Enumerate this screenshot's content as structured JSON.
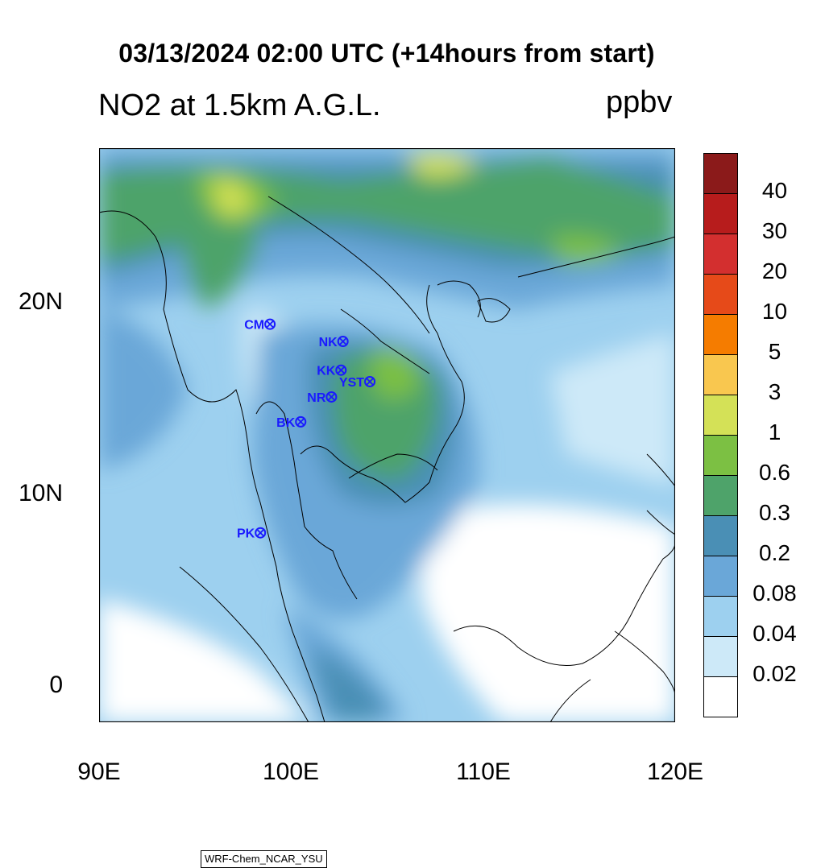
{
  "title": "03/13/2024 02:00 UTC (+14hours from start)",
  "subtitle": "NO2 at 1.5km A.G.L.",
  "units": "ppbv",
  "credit": "WRF-Chem_NCAR_YSU",
  "x_ticks": [
    "90E",
    "100E",
    "110E",
    "120E"
  ],
  "y_ticks": [
    "20N",
    "10N",
    "0"
  ],
  "colorbar": {
    "labels": [
      "40",
      "30",
      "20",
      "10",
      "5",
      "3",
      "1",
      "0.6",
      "0.3",
      "0.2",
      "0.08",
      "0.04",
      "0.02"
    ],
    "colors": [
      "#8b1a1a",
      "#b71c1c",
      "#d32f2f",
      "#e64a19",
      "#f57c00",
      "#f9c74f",
      "#d4e157",
      "#7cc043",
      "#4ea36a",
      "#4a8fb5",
      "#6aa7d8",
      "#9dd0ef",
      "#cde9f8",
      "#ffffff"
    ]
  },
  "stations": [
    {
      "id": "CM",
      "label": "CM",
      "lon": 98.9,
      "lat": 18.8
    },
    {
      "id": "NK",
      "label": "NK",
      "lon": 102.7,
      "lat": 17.9
    },
    {
      "id": "KK",
      "label": "KK",
      "lon": 102.6,
      "lat": 16.4
    },
    {
      "id": "YST",
      "label": "YST",
      "lon": 104.1,
      "lat": 15.8
    },
    {
      "id": "NR",
      "label": "NR",
      "lon": 102.1,
      "lat": 15.0
    },
    {
      "id": "BK",
      "label": "BK",
      "lon": 100.5,
      "lat": 13.7
    },
    {
      "id": "PK",
      "label": "PK",
      "lon": 98.4,
      "lat": 7.9
    }
  ]
}
